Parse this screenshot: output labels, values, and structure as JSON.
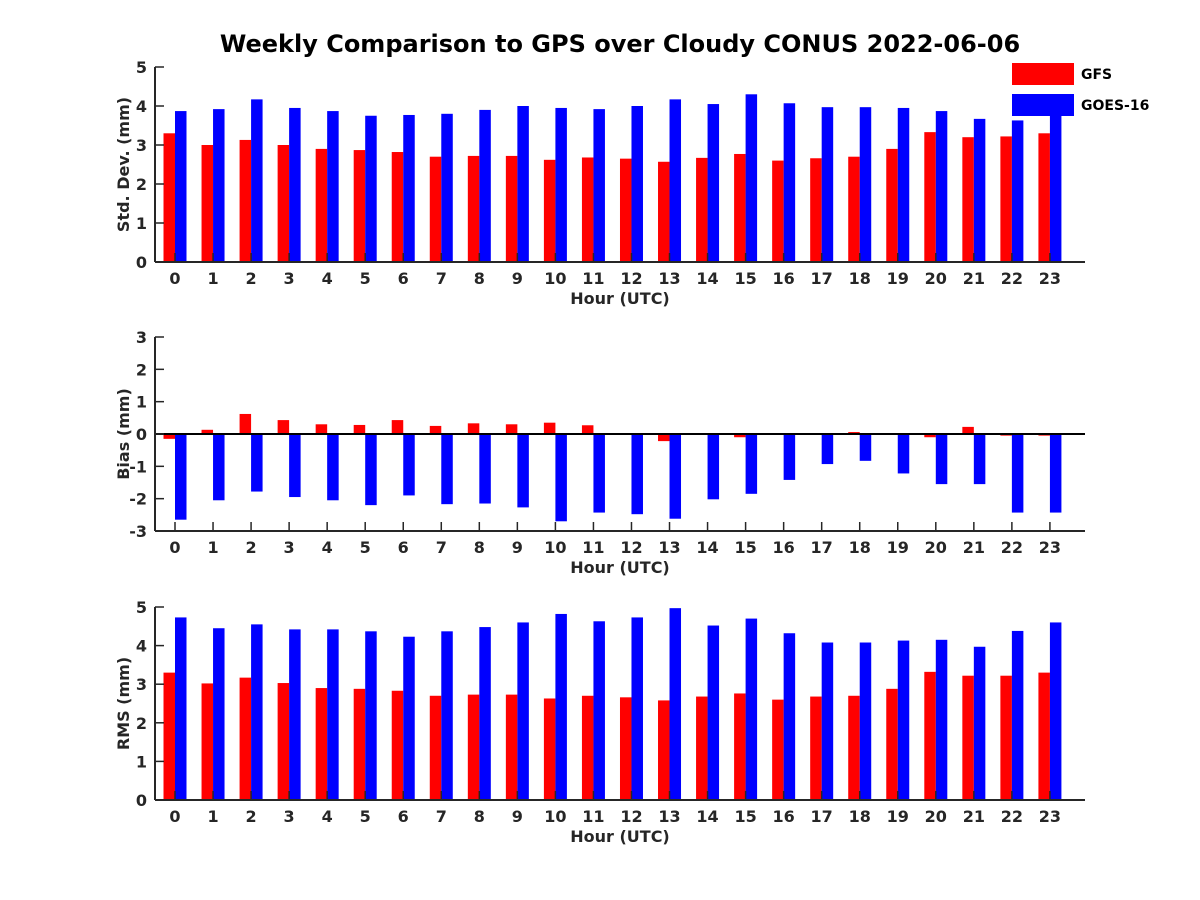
{
  "title": "Weekly Comparison to GPS over Cloudy CONUS 2022-06-06",
  "colors": {
    "GFS": "#ff0000",
    "GOES-16": "#0000ff"
  },
  "chart_data": [
    {
      "type": "bar",
      "ylabel": "Std. Dev. (mm)",
      "xlabel": "Hour (UTC)",
      "categories": [
        "0",
        "1",
        "2",
        "3",
        "4",
        "5",
        "6",
        "7",
        "8",
        "9",
        "10",
        "11",
        "12",
        "13",
        "14",
        "15",
        "16",
        "17",
        "18",
        "19",
        "20",
        "21",
        "22",
        "23"
      ],
      "ylim": [
        0,
        5
      ],
      "yticks": [
        0,
        1,
        2,
        3,
        4,
        5
      ],
      "legend": "top-right",
      "series": [
        {
          "name": "GFS",
          "values": [
            3.3,
            3.0,
            3.13,
            3.0,
            2.9,
            2.87,
            2.82,
            2.7,
            2.72,
            2.72,
            2.62,
            2.68,
            2.65,
            2.57,
            2.67,
            2.77,
            2.6,
            2.66,
            2.7,
            2.9,
            3.33,
            3.2,
            3.22,
            3.3
          ]
        },
        {
          "name": "GOES-16",
          "values": [
            3.87,
            3.92,
            4.17,
            3.95,
            3.87,
            3.75,
            3.77,
            3.8,
            3.9,
            4.0,
            3.95,
            3.92,
            4.0,
            4.17,
            4.05,
            4.3,
            4.07,
            3.97,
            3.97,
            3.95,
            3.87,
            3.67,
            3.63,
            3.83
          ]
        }
      ]
    },
    {
      "type": "bar",
      "ylabel": "Bias (mm)",
      "xlabel": "Hour (UTC)",
      "categories": [
        "0",
        "1",
        "2",
        "3",
        "4",
        "5",
        "6",
        "7",
        "8",
        "9",
        "10",
        "11",
        "12",
        "13",
        "14",
        "15",
        "16",
        "17",
        "18",
        "19",
        "20",
        "21",
        "22",
        "23"
      ],
      "ylim": [
        -3,
        3
      ],
      "yticks": [
        -3,
        -2,
        -1,
        0,
        1,
        2,
        3
      ],
      "zero_line": true,
      "series": [
        {
          "name": "GFS",
          "values": [
            -0.15,
            0.13,
            0.62,
            0.43,
            0.3,
            0.28,
            0.43,
            0.25,
            0.33,
            0.3,
            0.35,
            0.27,
            0.0,
            -0.22,
            0.0,
            -0.1,
            0.0,
            -0.03,
            0.06,
            0.0,
            -0.1,
            0.22,
            -0.05,
            -0.05
          ]
        },
        {
          "name": "GOES-16",
          "values": [
            -2.65,
            -2.05,
            -1.78,
            -1.95,
            -2.05,
            -2.2,
            -1.9,
            -2.17,
            -2.15,
            -2.27,
            -2.7,
            -2.43,
            -2.48,
            -2.62,
            -2.02,
            -1.85,
            -1.42,
            -0.93,
            -0.83,
            -1.22,
            -1.55,
            -1.55,
            -2.43,
            -2.43
          ]
        }
      ]
    },
    {
      "type": "bar",
      "ylabel": "RMS (mm)",
      "xlabel": "Hour (UTC)",
      "categories": [
        "0",
        "1",
        "2",
        "3",
        "4",
        "5",
        "6",
        "7",
        "8",
        "9",
        "10",
        "11",
        "12",
        "13",
        "14",
        "15",
        "16",
        "17",
        "18",
        "19",
        "20",
        "21",
        "22",
        "23"
      ],
      "ylim": [
        0,
        5
      ],
      "yticks": [
        0,
        1,
        2,
        3,
        4,
        5
      ],
      "series": [
        {
          "name": "GFS",
          "values": [
            3.3,
            3.02,
            3.17,
            3.03,
            2.9,
            2.88,
            2.83,
            2.7,
            2.73,
            2.73,
            2.63,
            2.7,
            2.66,
            2.58,
            2.68,
            2.76,
            2.6,
            2.68,
            2.7,
            2.88,
            3.32,
            3.22,
            3.22,
            3.3
          ]
        },
        {
          "name": "GOES-16",
          "values": [
            4.73,
            4.45,
            4.55,
            4.42,
            4.42,
            4.37,
            4.23,
            4.37,
            4.48,
            4.6,
            4.82,
            4.63,
            4.73,
            4.97,
            4.52,
            4.7,
            4.32,
            4.08,
            4.08,
            4.13,
            4.15,
            3.97,
            4.38,
            4.6
          ]
        }
      ]
    }
  ]
}
